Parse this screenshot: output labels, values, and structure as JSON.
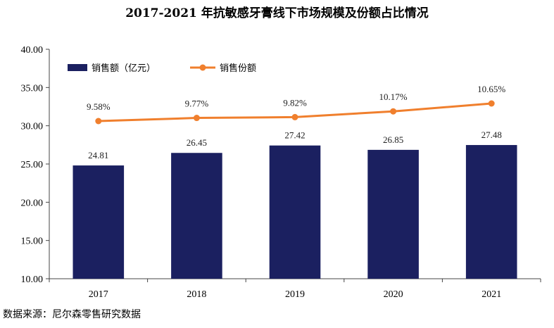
{
  "chart_data": {
    "type": "bar",
    "title": "2017-2021 年抗敏感牙膏线下市场规模及份额占比情况",
    "categories": [
      "2017",
      "2018",
      "2019",
      "2020",
      "2021"
    ],
    "series": [
      {
        "name": "销售额（亿元）",
        "type": "bar",
        "values": [
          24.81,
          26.45,
          27.42,
          26.85,
          27.48
        ],
        "labels": [
          "24.81",
          "26.45",
          "27.42",
          "26.85",
          "27.48"
        ],
        "color": "#1b2060"
      },
      {
        "name": "销售份额",
        "type": "line",
        "values": [
          9.58,
          9.77,
          9.82,
          10.17,
          10.65
        ],
        "labels": [
          "9.58%",
          "9.77%",
          "9.82%",
          "10.17%",
          "10.65%"
        ],
        "color": "#f07f2d"
      }
    ],
    "ylim": [
      10,
      40
    ],
    "yticks": [
      "10.00",
      "15.00",
      "20.00",
      "25.00",
      "30.00",
      "35.00",
      "40.00"
    ],
    "legend": "top-left",
    "grid": false
  },
  "source": "数据来源：尼尔森零售研究数据"
}
